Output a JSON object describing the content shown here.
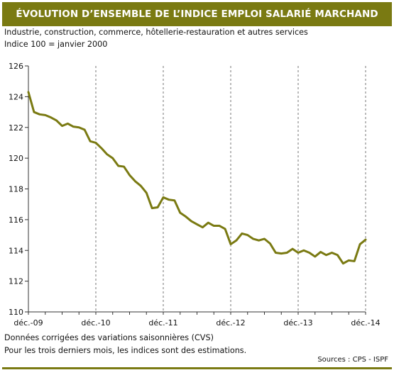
{
  "header": {
    "title": "ÉVOLUTION D’ENSEMBLE DE L’INDICE EMPLOI SALARIÉ MARCHAND",
    "subtitle1": "Industrie, construction, commerce, hôtellerie-restauration et autres services",
    "subtitle2": "Indice 100 = janvier 2000"
  },
  "footer": {
    "note1": "Données corrigées des variations saisonnières (CVS)",
    "note2": "Pour les trois derniers mois, les indices sont des estimations.",
    "source": "Sources : CPS - ISPF"
  },
  "colors": {
    "accent": "#7a7a12",
    "line": "#7a7a12",
    "grid": "#555555"
  },
  "chart_data": {
    "type": "line",
    "title": "",
    "xlabel": "",
    "ylabel": "",
    "ylim": [
      110,
      126
    ],
    "yticks": [
      110,
      112,
      114,
      116,
      118,
      120,
      122,
      124,
      126
    ],
    "xtick_labels": [
      "déc.-09",
      "déc.-10",
      "déc.-11",
      "déc.-12",
      "déc.-13",
      "déc.-14"
    ],
    "grid": "vertical",
    "legend": "none",
    "series": [
      {
        "values": [
          124.3,
          123.0,
          122.85,
          122.8,
          122.65,
          122.45,
          122.1,
          122.25,
          122.05,
          122.0,
          121.85,
          121.1,
          121.0,
          120.65,
          120.25,
          120.0,
          119.5,
          119.45,
          118.9,
          118.5,
          118.2,
          117.75,
          116.75,
          116.8,
          117.45,
          117.3,
          117.25,
          116.45,
          116.2,
          115.9,
          115.7,
          115.5,
          115.8,
          115.6,
          115.6,
          115.4,
          114.4,
          114.65,
          115.1,
          115.0,
          114.75,
          114.65,
          114.75,
          114.45,
          113.85,
          113.8,
          113.85,
          114.1,
          113.85,
          114.0,
          113.85,
          113.6,
          113.9,
          113.7,
          113.85,
          113.7,
          113.15,
          113.35,
          113.3,
          114.4,
          114.7
        ]
      }
    ]
  }
}
